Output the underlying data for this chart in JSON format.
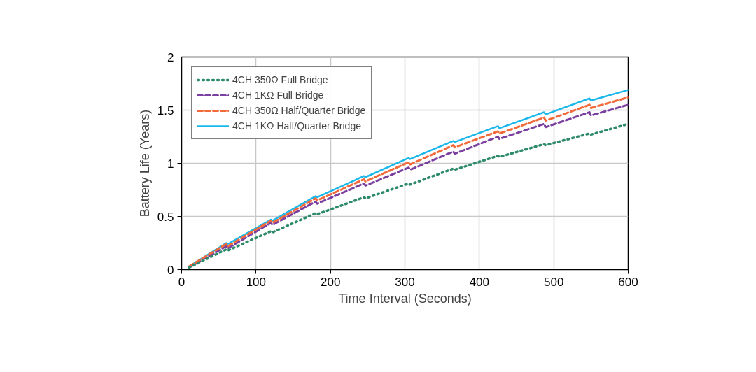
{
  "chart_data": {
    "type": "line",
    "xlabel": "Time Interval (Seconds)",
    "ylabel": "Battery Life (Years)",
    "xlim": [
      0,
      600
    ],
    "ylim": [
      0,
      2
    ],
    "xticks": [
      0,
      100,
      200,
      300,
      400,
      500,
      600
    ],
    "yticks": [
      0,
      0.5,
      1,
      1.5,
      2
    ],
    "grid": true,
    "legend": "top left",
    "x": [
      10,
      60,
      62,
      120,
      122,
      180,
      182,
      245,
      247,
      305,
      307,
      365,
      367,
      425,
      427,
      487,
      489,
      548,
      550,
      600
    ],
    "series": [
      {
        "name": "4CH 350Ω Full Bridge",
        "color": "#2e8b6a",
        "line_style": "dotted",
        "values": [
          0.02,
          0.19,
          0.18,
          0.36,
          0.35,
          0.53,
          0.52,
          0.68,
          0.67,
          0.81,
          0.8,
          0.95,
          0.94,
          1.07,
          1.06,
          1.18,
          1.17,
          1.28,
          1.27,
          1.37
        ]
      },
      {
        "name": "4CH 1KΩ Full Bridge",
        "color": "#7b3fa0",
        "line_style": "dashed",
        "values": [
          0.02,
          0.22,
          0.2,
          0.44,
          0.42,
          0.64,
          0.62,
          0.81,
          0.79,
          0.96,
          0.94,
          1.11,
          1.09,
          1.25,
          1.23,
          1.37,
          1.34,
          1.48,
          1.45,
          1.55
        ]
      },
      {
        "name": "4CH 350Ω Half/Quarter Bridge",
        "color": "#f26a3a",
        "line_style": "dashed",
        "values": [
          0.03,
          0.24,
          0.22,
          0.46,
          0.44,
          0.67,
          0.65,
          0.85,
          0.83,
          1.01,
          0.99,
          1.17,
          1.15,
          1.3,
          1.28,
          1.43,
          1.4,
          1.55,
          1.52,
          1.62
        ]
      },
      {
        "name": "4CH 1KΩ Half/Quarter Bridge",
        "color": "#1ab8ea",
        "line_style": "solid",
        "values": [
          0.03,
          0.25,
          0.24,
          0.47,
          0.46,
          0.69,
          0.68,
          0.88,
          0.87,
          1.05,
          1.04,
          1.21,
          1.2,
          1.35,
          1.33,
          1.48,
          1.46,
          1.61,
          1.59,
          1.69
        ]
      }
    ]
  }
}
